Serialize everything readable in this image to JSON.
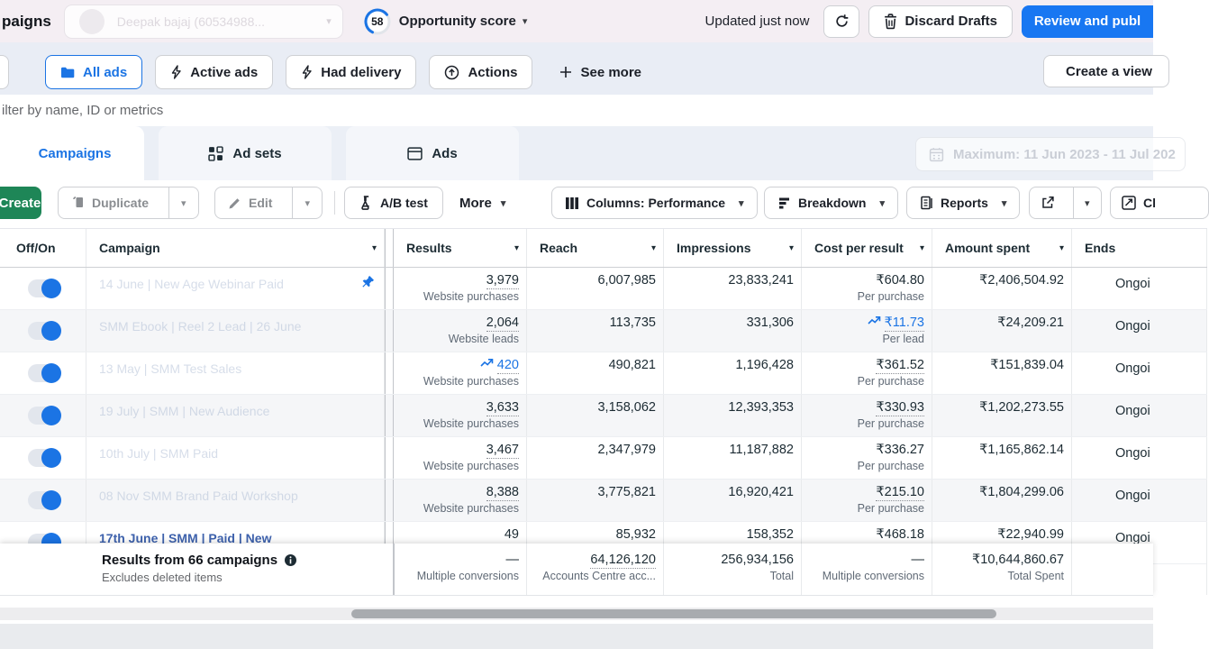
{
  "topbar": {
    "nav_partial": "paigns",
    "account_ghost": "Deepak bajaj (60534988...",
    "score": "58",
    "score_label": "Opportunity score",
    "updated": "Updated just now",
    "discard": "Discard Drafts",
    "publish": "Review and publ"
  },
  "filter_bar": {
    "chips": [
      {
        "label": "All ads",
        "icon": "folder-icon",
        "active": true
      },
      {
        "label": "Active ads",
        "icon": "bolt-icon"
      },
      {
        "label": "Had delivery",
        "icon": "bolt-icon"
      },
      {
        "label": "Actions",
        "icon": "arrow-up-circle-icon"
      },
      {
        "label": "See more",
        "icon": "plus-icon",
        "borderless": true
      }
    ],
    "create_view": "Create a view"
  },
  "filter_input_placeholder": "ilter by name, ID or metrics",
  "tabs": [
    {
      "label": "Campaigns",
      "icon": null,
      "active": true
    },
    {
      "label": "Ad sets",
      "icon": "grid-icon"
    },
    {
      "label": "Ads",
      "icon": "ad-frame-icon"
    }
  ],
  "date_range": "Maximum: 11 Jun 2023 - 11 Jul 202",
  "toolbar": {
    "create": "Create",
    "duplicate": "Duplicate",
    "edit": "Edit",
    "ab_test": "A/B test",
    "more": "More",
    "columns": "Columns: Performance",
    "breakdown": "Breakdown",
    "reports": "Reports",
    "charts_partial": "Cl"
  },
  "table": {
    "headers": [
      "Off/On",
      "Campaign",
      "Results",
      "Reach",
      "Impressions",
      "Cost per result",
      "Amount spent",
      "Ends"
    ],
    "rows": [
      {
        "name": "14 June | New Age Webinar Paid",
        "pinned": true,
        "toggle_on": true,
        "results": "3,979",
        "results_dotted": true,
        "results_label": "Website purchases",
        "reach": "6,007,985",
        "impressions": "23,833,241",
        "cost": "₹604.80",
        "cost_label": "Per purchase",
        "spent": "₹2,406,504.92",
        "ends": "Ongoi"
      },
      {
        "name": "SMM Ebook | Reel 2 Lead | 26 June",
        "toggle_on": true,
        "results": "2,064",
        "results_dotted": true,
        "results_label": "Website leads",
        "reach": "113,735",
        "impressions": "331,306",
        "cost": "₹11.73",
        "cost_trend": true,
        "cost_dotted": true,
        "cost_label": "Per lead",
        "spent": "₹24,209.21",
        "ends": "Ongoi"
      },
      {
        "name": "13 May | SMM Test Sales",
        "toggle_on": true,
        "results": "420",
        "results_trend": true,
        "results_dotted": true,
        "results_label": "Website purchases",
        "reach": "490,821",
        "impressions": "1,196,428",
        "cost": "₹361.52",
        "cost_dotted": true,
        "cost_label": "Per purchase",
        "spent": "₹151,839.04",
        "ends": "Ongoi"
      },
      {
        "name": "19 July | SMM | New Audience",
        "toggle_on": true,
        "results": "3,633",
        "results_dotted": true,
        "results_label": "Website purchases",
        "reach": "3,158,062",
        "impressions": "12,393,353",
        "cost": "₹330.93",
        "cost_dotted": true,
        "cost_label": "Per purchase",
        "spent": "₹1,202,273.55",
        "ends": "Ongoi"
      },
      {
        "name": "10th July | SMM Paid",
        "toggle_on": true,
        "results": "3,467",
        "results_dotted": true,
        "results_label": "Website purchases",
        "reach": "2,347,979",
        "impressions": "11,187,882",
        "cost": "₹336.27",
        "cost_label": "Per purchase",
        "spent": "₹1,165,862.14",
        "ends": "Ongoi"
      },
      {
        "name": "08 Nov SMM Brand Paid Workshop",
        "toggle_on": true,
        "results": "8,388",
        "results_dotted": true,
        "results_label": "Website purchases",
        "reach": "3,775,821",
        "impressions": "16,920,421",
        "cost": "₹215.10",
        "cost_dotted": true,
        "cost_label": "Per purchase",
        "spent": "₹1,804,299.06",
        "ends": "Ongoi"
      },
      {
        "name": "17th June | SMM | Paid | New",
        "link": true,
        "toggle_on": true,
        "results": "49",
        "reach": "85,932",
        "impressions": "158,352",
        "cost": "₹468.18",
        "spent": "₹22,940.99",
        "ends": "Ongoi"
      }
    ],
    "summary": {
      "title": "Results from 66 campaigns",
      "note": "Excludes deleted items",
      "results": "—",
      "results_label": "Multiple conversions",
      "reach": "64,126,120",
      "reach_dotted": true,
      "reach_label": "Accounts Centre acc...",
      "impressions": "256,934,156",
      "impressions_label": "Total",
      "cost": "—",
      "cost_label": "Multiple conversions",
      "spent": "₹10,644,860.67",
      "spent_label": "Total Spent"
    }
  }
}
